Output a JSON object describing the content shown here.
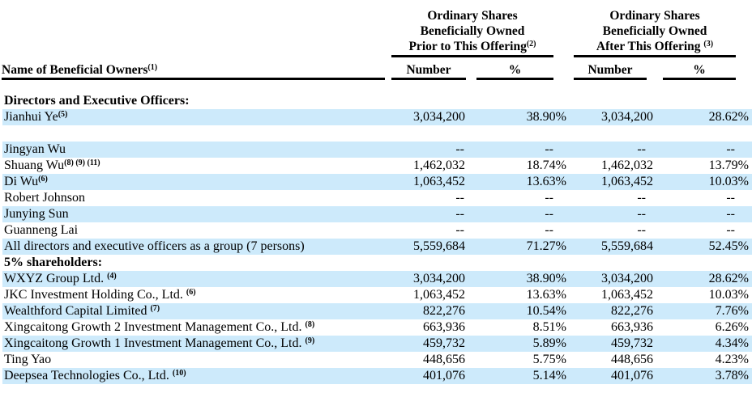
{
  "page": {
    "background_color": "#ffffff",
    "text_color": "#000000",
    "shaded_row_color": "#cdeafb"
  },
  "table": {
    "name_header": {
      "label": "Name of Beneficial Owners",
      "sup": "(1)"
    },
    "col_groups": [
      {
        "lines": [
          "Ordinary Shares",
          "Beneficially Owned",
          "Prior to This Offering"
        ],
        "sup": "(2)"
      },
      {
        "lines": [
          "Ordinary Shares",
          "Beneficially Owned",
          "After This Offering "
        ],
        "sup": "(3)"
      }
    ],
    "sub_headers": [
      "Number",
      "%",
      "Number",
      "%"
    ],
    "rows": [
      {
        "style": "section",
        "shaded": false,
        "name": "Directors and Executive Officers:",
        "sup": "",
        "values": [
          "",
          "",
          "",
          ""
        ]
      },
      {
        "style": "data",
        "shaded": true,
        "name": "Jianhui Ye",
        "sup": "(5)",
        "values": [
          "3,034,200",
          "38.90%",
          "3,034,200",
          "28.62%"
        ]
      },
      {
        "style": "spacer",
        "shaded": false,
        "name": "",
        "sup": "",
        "values": [
          "",
          "",
          "",
          ""
        ]
      },
      {
        "style": "data",
        "shaded": true,
        "name": "Jingyan Wu",
        "sup": "",
        "values": [
          "--",
          "--",
          "--",
          "--"
        ]
      },
      {
        "style": "data",
        "shaded": false,
        "name": "Shuang Wu",
        "sup": "(8) (9) (11)",
        "values": [
          "1,462,032",
          "18.74%",
          "1,462,032",
          "13.79%"
        ]
      },
      {
        "style": "data",
        "shaded": true,
        "name": "Di Wu",
        "sup": "(6)",
        "values": [
          "1,063,452",
          "13.63%",
          "1,063,452",
          "10.03%"
        ]
      },
      {
        "style": "data",
        "shaded": false,
        "name": "Robert Johnson",
        "sup": "",
        "values": [
          "--",
          "--",
          "--",
          "--"
        ]
      },
      {
        "style": "data",
        "shaded": true,
        "name": "Junying Sun",
        "sup": "",
        "values": [
          "--",
          "--",
          "--",
          "--"
        ]
      },
      {
        "style": "data",
        "shaded": false,
        "name": "Guanneng Lai",
        "sup": "",
        "values": [
          "--",
          "--",
          "--",
          "--"
        ]
      },
      {
        "style": "data",
        "shaded": true,
        "name": "All directors and executive officers as a group (7 persons)",
        "sup": "",
        "values": [
          "5,559,684",
          "71.27%",
          "5,559,684",
          "52.45%"
        ]
      },
      {
        "style": "section",
        "shaded": false,
        "name": "5% shareholders:",
        "sup": "",
        "values": [
          "",
          "",
          "",
          ""
        ]
      },
      {
        "style": "data",
        "shaded": true,
        "name": "WXYZ Group Ltd. ",
        "sup": "(4)",
        "values": [
          "3,034,200",
          "38.90%",
          "3,034,200",
          "28.62%"
        ]
      },
      {
        "style": "data",
        "shaded": false,
        "name": "JKC Investment Holding Co., Ltd. ",
        "sup": "(6)",
        "values": [
          "1,063,452",
          "13.63%",
          "1,063,452",
          "10.03%"
        ]
      },
      {
        "style": "data",
        "shaded": true,
        "name": "Wealthford Capital Limited ",
        "sup": "(7)",
        "values": [
          "822,276",
          "10.54%",
          "822,276",
          "7.76%"
        ]
      },
      {
        "style": "data",
        "shaded": false,
        "name": "Xingcaitong Growth 2 Investment Management Co., Ltd. ",
        "sup": "(8)",
        "values": [
          "663,936",
          "8.51%",
          "663,936",
          "6.26%"
        ]
      },
      {
        "style": "data",
        "shaded": true,
        "name": "Xingcaitong Growth 1 Investment Management Co., Ltd. ",
        "sup": "(9)",
        "values": [
          "459,732",
          "5.89%",
          "459,732",
          "4.34%"
        ]
      },
      {
        "style": "data",
        "shaded": false,
        "name": "Ting Yao",
        "sup": "",
        "values": [
          "448,656",
          "5.75%",
          "448,656",
          "4.23%"
        ]
      },
      {
        "style": "data",
        "shaded": true,
        "name": "Deepsea Technologies Co., Ltd. ",
        "sup": "(10)",
        "values": [
          "401,076",
          "5.14%",
          "401,076",
          "3.78%"
        ]
      }
    ]
  }
}
